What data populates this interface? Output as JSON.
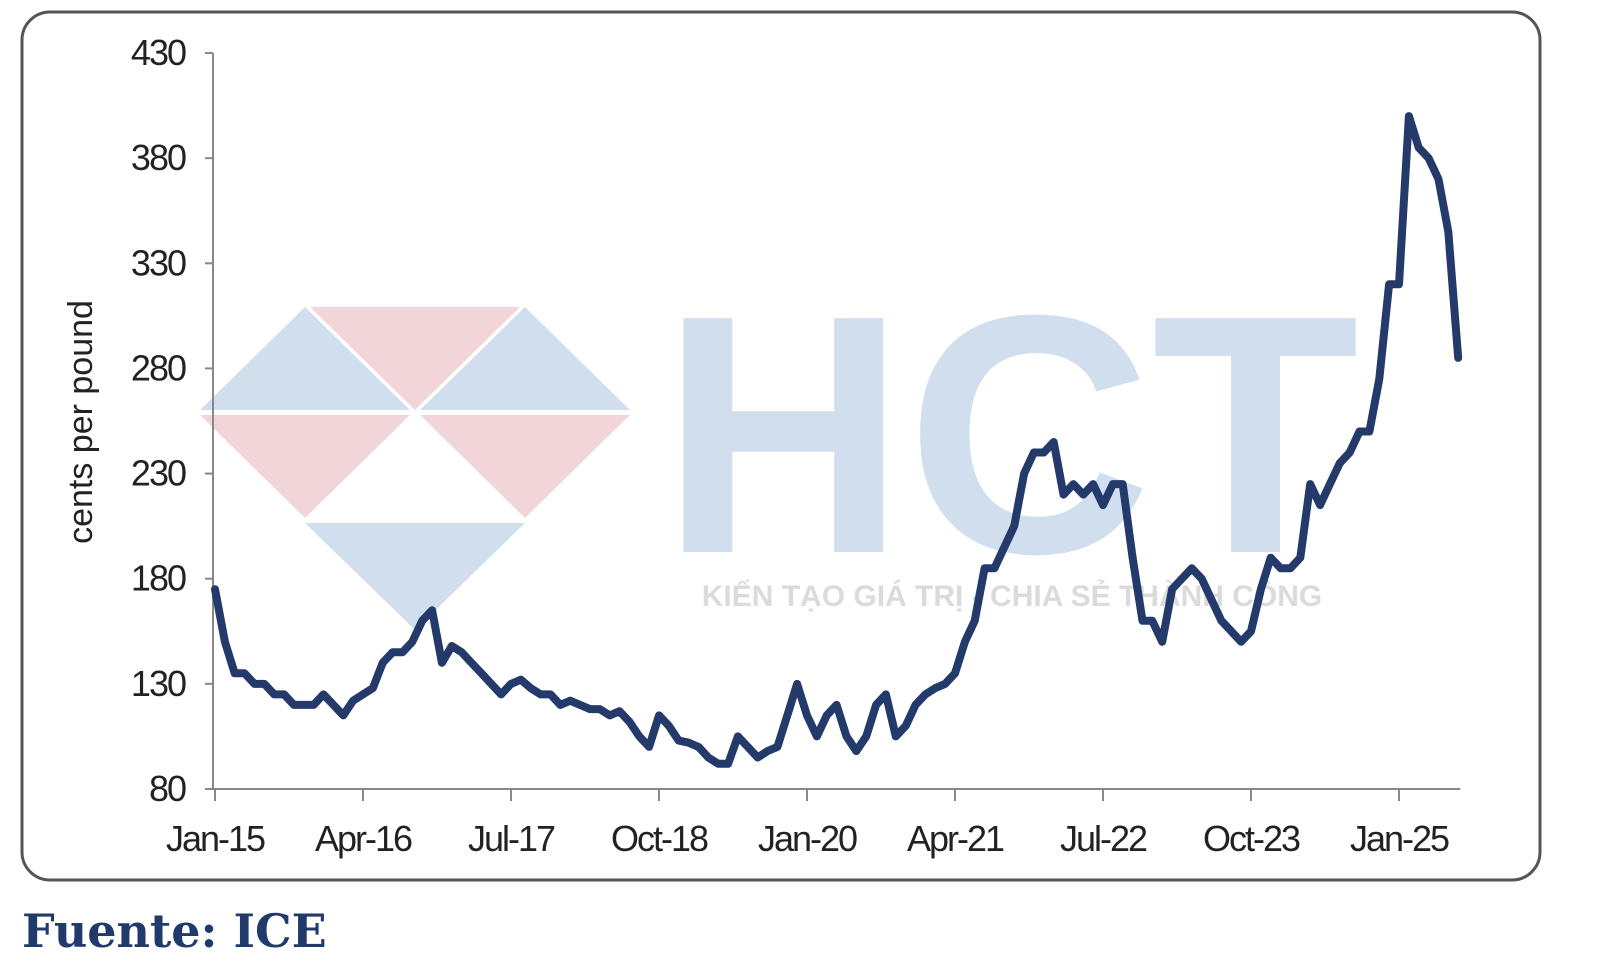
{
  "chart_data": {
    "type": "line",
    "y_label": "cents per pound",
    "categories": [
      "Jan-15",
      null,
      null,
      null,
      null,
      null,
      null,
      null,
      null,
      null,
      null,
      null,
      null,
      null,
      null,
      "Apr-16",
      null,
      null,
      null,
      null,
      null,
      null,
      null,
      null,
      null,
      null,
      null,
      null,
      null,
      null,
      "Jul-17",
      null,
      null,
      null,
      null,
      null,
      null,
      null,
      null,
      null,
      null,
      null,
      null,
      null,
      null,
      "Oct-18",
      null,
      null,
      null,
      null,
      null,
      null,
      null,
      null,
      null,
      null,
      null,
      null,
      null,
      null,
      "Jan-20",
      null,
      null,
      null,
      null,
      null,
      null,
      null,
      null,
      null,
      null,
      null,
      null,
      null,
      null,
      "Apr-21",
      null,
      null,
      null,
      null,
      null,
      null,
      null,
      null,
      null,
      null,
      null,
      null,
      null,
      null,
      "Jul-22",
      null,
      null,
      null,
      null,
      null,
      null,
      null,
      null,
      null,
      null,
      null,
      null,
      null,
      null,
      "Oct-23",
      null,
      null,
      null,
      null,
      null,
      null,
      null,
      null,
      null,
      null,
      null,
      null,
      null,
      null,
      "Jan-25",
      null,
      null,
      null,
      null,
      null,
      null
    ],
    "series": [
      {
        "color": "#243a6b",
        "values": [
          175,
          150,
          135,
          135,
          130,
          130,
          125,
          125,
          120,
          120,
          120,
          125,
          120,
          115,
          122,
          125,
          128,
          140,
          145,
          145,
          150,
          160,
          165,
          140,
          148,
          145,
          140,
          135,
          130,
          125,
          130,
          132,
          128,
          125,
          125,
          120,
          122,
          120,
          118,
          118,
          115,
          117,
          112,
          105,
          100,
          115,
          110,
          103,
          102,
          100,
          95,
          92,
          92,
          105,
          100,
          95,
          98,
          100,
          115,
          130,
          115,
          105,
          115,
          120,
          105,
          98,
          105,
          120,
          125,
          105,
          110,
          120,
          125,
          128,
          130,
          135,
          150,
          160,
          185,
          185,
          195,
          205,
          230,
          240,
          240,
          245,
          220,
          225,
          220,
          225,
          215,
          225,
          225,
          190,
          160,
          160,
          150,
          175,
          180,
          185,
          180,
          170,
          160,
          155,
          150,
          155,
          175,
          190,
          185,
          185,
          190,
          225,
          215,
          225,
          235,
          240,
          250,
          250,
          275,
          320,
          320,
          400,
          385,
          380,
          370,
          345,
          285
        ]
      }
    ],
    "ylim": [
      80,
      430
    ],
    "yticks": [
      80,
      130,
      180,
      230,
      280,
      330,
      380,
      430
    ]
  },
  "watermark": {
    "logo": "HCT",
    "tagline": "KIẾN TẠO GIÁ TRỊ - CHIA SẺ THÀNH CÔNG"
  },
  "source": "Fuente: ICE"
}
